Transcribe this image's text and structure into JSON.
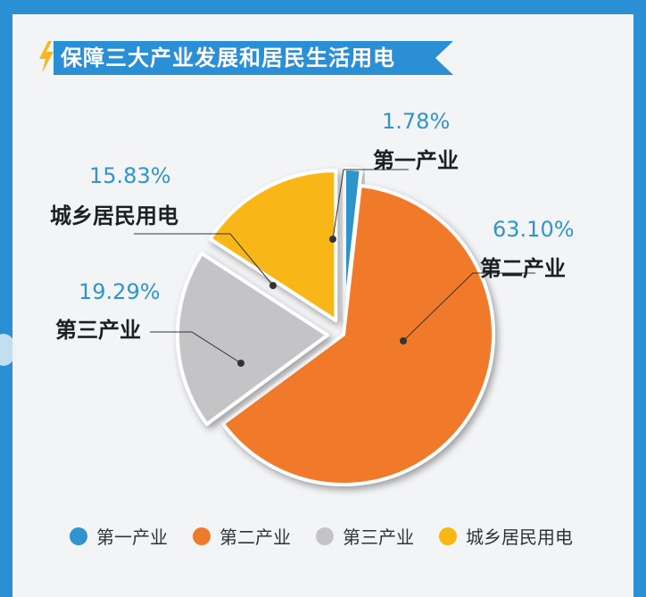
{
  "title": "保障三大产业发展和居民生活用电",
  "colors": {
    "frame": "#2b8fd6",
    "title_bg": "#2b8fd6",
    "bolt": "#f5b820",
    "pct_text": "#2f95cc"
  },
  "chart_data": {
    "type": "pie",
    "title": "保障三大产业发展和居民生活用电",
    "slices": [
      {
        "name": "第一产业",
        "value": 1.78,
        "label": "1.78%",
        "color": "#2f95cc",
        "exploded": true
      },
      {
        "name": "第二产业",
        "value": 63.1,
        "label": "63.10%",
        "color": "#f07a2c",
        "exploded": false
      },
      {
        "name": "第三产业",
        "value": 19.29,
        "label": "19.29%",
        "color": "#c4c4c6",
        "exploded": true
      },
      {
        "name": "城乡居民用电",
        "value": 15.83,
        "label": "15.83%",
        "color": "#f8b712",
        "exploded": true
      }
    ],
    "legend_position": "bottom"
  }
}
